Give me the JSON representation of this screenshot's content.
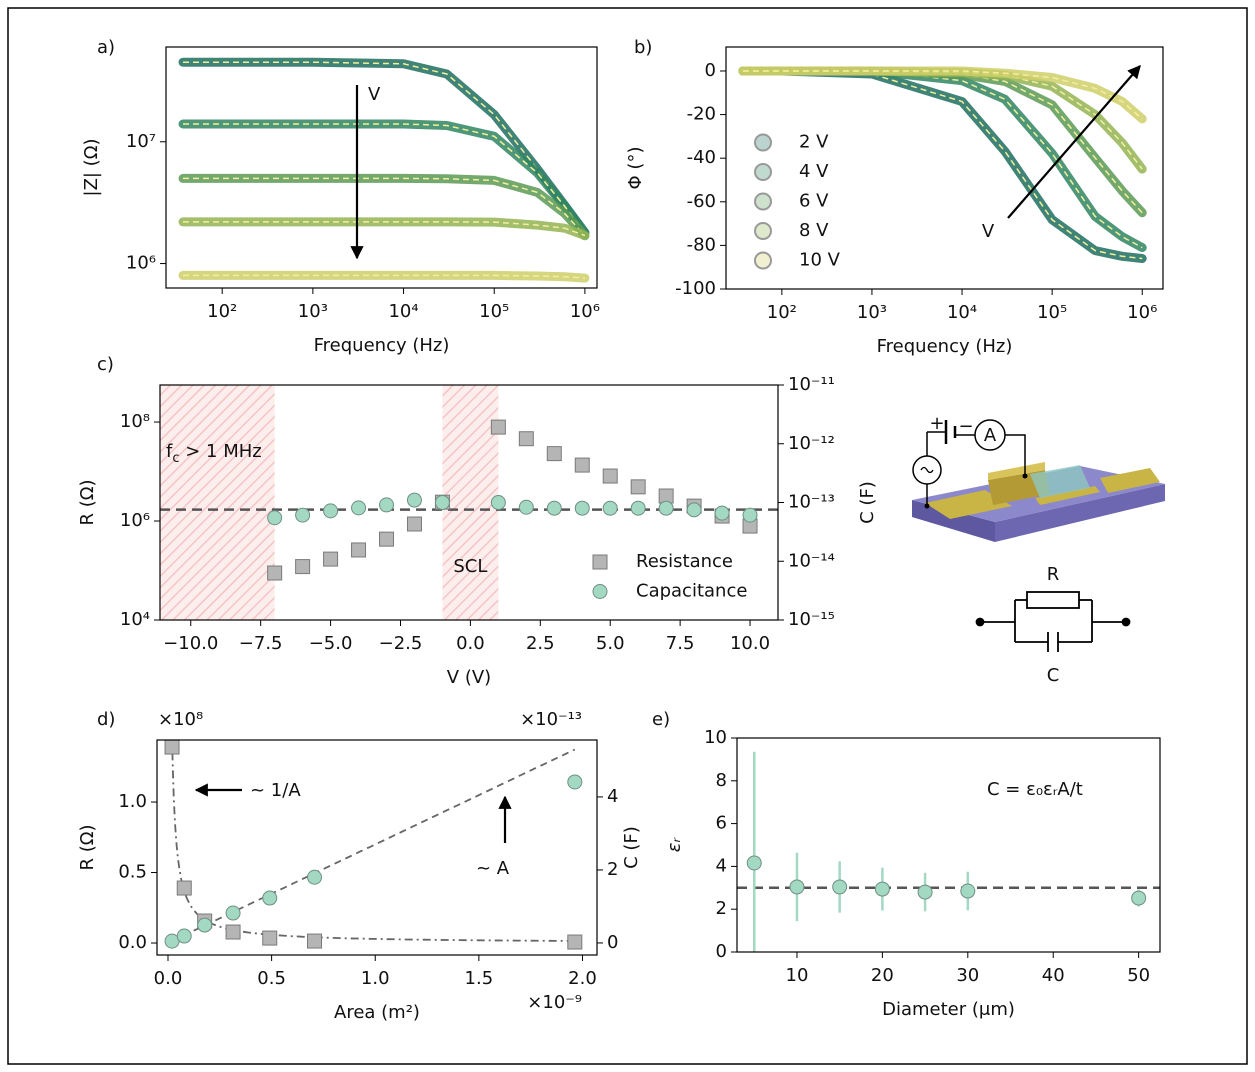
{
  "chart_data": [
    {
      "type": "line",
      "panel_label": "a)",
      "xlabel": "Frequency (Hz)",
      "ylabel": "|Z| (Ω)",
      "xscale": "log",
      "yscale": "log",
      "xlim": [
        24,
        1360000
      ],
      "ylim": [
        630000,
        60000000
      ],
      "xticks": [
        {
          "value": 100,
          "label": "10²"
        },
        {
          "value": 1000,
          "label": "10³"
        },
        {
          "value": 10000,
          "label": "10⁴"
        },
        {
          "value": 100000,
          "label": "10⁵"
        },
        {
          "value": 1000000,
          "label": "10⁶"
        }
      ],
      "yticks": [
        {
          "value": 1000000,
          "label": "10⁶"
        },
        {
          "value": 10000000,
          "label": "10⁷"
        }
      ],
      "x": [
        37,
        100,
        1000,
        10000,
        30000,
        100000,
        300000,
        600000,
        1000000
      ],
      "series": [
        {
          "color": "#1f6f60",
          "values": [
            45000000,
            45000000,
            45000000,
            43700000,
            36000000,
            16700000,
            5950000,
            3000000,
            1800000
          ]
        },
        {
          "color": "#2f8560",
          "values": [
            14000000,
            14000000,
            14000000,
            14000000,
            13600000,
            11100000,
            5530000,
            2940000,
            1790000
          ]
        },
        {
          "color": "#5a9a55",
          "values": [
            5000000,
            5000000,
            5000000,
            5000000,
            4970000,
            4820000,
            3840000,
            2570000,
            1690000
          ]
        },
        {
          "color": "#93b453",
          "values": [
            2200000,
            2200000,
            2200000,
            2200000,
            2200000,
            2190000,
            2070000,
            1950000,
            1700000
          ]
        },
        {
          "color": "#cfcf6a",
          "values": [
            800000,
            800000,
            800000,
            800000,
            800000,
            800000,
            790000,
            780000,
            760000
          ]
        }
      ],
      "annotations": [
        {
          "text": "V"
        }
      ]
    },
    {
      "type": "line",
      "panel_label": "b)",
      "xlabel": "Frequency (Hz)",
      "ylabel": "Φ (°)",
      "xscale": "log",
      "xlim": [
        24,
        1700000
      ],
      "ylim": [
        -100,
        11
      ],
      "xticks": [
        {
          "value": 100,
          "label": "10²"
        },
        {
          "value": 1000,
          "label": "10³"
        },
        {
          "value": 10000,
          "label": "10⁴"
        },
        {
          "value": 100000,
          "label": "10⁵"
        },
        {
          "value": 1000000,
          "label": "10⁶"
        }
      ],
      "yticks": [
        0,
        -20,
        -40,
        -60,
        -80,
        -100
      ],
      "x": [
        37,
        100,
        1000,
        10000,
        30000,
        100000,
        300000,
        600000,
        1000000
      ],
      "legend": "lower left",
      "series": [
        {
          "name": "2 V",
          "color": "#1f6f60",
          "values": [
            0,
            0,
            -1.4,
            -14,
            -36.9,
            -68.2,
            -82.4,
            -85,
            -86
          ]
        },
        {
          "name": "4 V",
          "color": "#2f8560",
          "values": [
            0,
            0,
            0,
            -4.4,
            -13,
            -37.8,
            -66.7,
            -76,
            -81
          ]
        },
        {
          "name": "6 V",
          "color": "#5a9a55",
          "values": [
            0,
            0,
            0,
            -1.6,
            -4.8,
            -15.5,
            -39.8,
            -55,
            -65
          ]
        },
        {
          "name": "8 V",
          "color": "#93b453",
          "values": [
            0,
            0,
            0,
            -0.7,
            -2,
            -7,
            -20,
            -33,
            -45
          ]
        },
        {
          "name": "10 V",
          "color": "#cfcf6a",
          "values": [
            0,
            0,
            0,
            0,
            -1,
            -3,
            -8,
            -14,
            -22
          ]
        }
      ],
      "annotations": [
        {
          "text": "V"
        }
      ]
    },
    {
      "type": "scatter",
      "panel_label": "c)",
      "xlabel": "V (V)",
      "ylabel": "R (Ω)",
      "y2label": "C (F)",
      "yscale": "log",
      "y2scale": "log",
      "xlim": [
        -11.1,
        11
      ],
      "ylim": [
        10000,
        560000000
      ],
      "y2lim": [
        1e-15,
        1e-11
      ],
      "xticks": [
        {
          "value": -10,
          "label": "−10.0"
        },
        {
          "value": -7.5,
          "label": "−7.5"
        },
        {
          "value": -5,
          "label": "−5.0"
        },
        {
          "value": -2.5,
          "label": "−2.5"
        },
        {
          "value": 0,
          "label": "0.0"
        },
        2.5,
        {
          "value": 5,
          "label": "5.0"
        },
        7.5,
        {
          "value": 10,
          "label": "10.0"
        }
      ],
      "yticks": [
        {
          "value": 10000,
          "label": "10⁴"
        },
        {
          "value": 1000000,
          "label": "10⁶"
        },
        {
          "value": 100000000,
          "label": "10⁸"
        }
      ],
      "y2ticks": [
        {
          "value": 1e-15,
          "label": "10⁻¹⁵"
        },
        {
          "value": 1e-14,
          "label": "10⁻¹⁴"
        },
        {
          "value": 1e-13,
          "label": "10⁻¹³"
        },
        {
          "value": 1e-12,
          "label": "10⁻¹²"
        },
        {
          "value": 1e-11,
          "label": "10⁻¹¹"
        }
      ],
      "x": [
        -7,
        -6,
        -5,
        -4,
        -3,
        -2,
        -1,
        1,
        2,
        3,
        4,
        5,
        6,
        7,
        8,
        9,
        10
      ],
      "legend": "lower right",
      "hline": 1700000,
      "shaded": [
        {
          "x": [
            -11.1,
            -7
          ],
          "label_parts": [
            "f",
            "c",
            " > 1 MHz"
          ]
        },
        {
          "x": [
            -1,
            1
          ],
          "label": "SCL"
        }
      ],
      "series": [
        {
          "name": "Resistance",
          "marker": "square",
          "color": "#b5b5b5",
          "values": [
            89000,
            120000,
            170000,
            260000,
            430000,
            870000,
            2400000,
            79000000,
            46000000,
            23000000,
            13500000,
            8100000,
            4900000,
            3200000,
            2000000,
            1260000,
            790000
          ]
        },
        {
          "name": "Capacitance",
          "marker": "circle",
          "color": "#a3d8c3",
          "axis": "y2",
          "values": [
            5.5e-14,
            6.1e-14,
            7.2e-14,
            8.1e-14,
            9.1e-14,
            1.1e-13,
            1e-13,
            1e-13,
            8.3e-14,
            8e-14,
            8e-14,
            8e-14,
            8e-14,
            8e-14,
            7.5e-14,
            6.6e-14,
            6.1e-14
          ]
        }
      ]
    },
    {
      "type": "scatter",
      "panel_label": "d)",
      "xlabel": "Area (m²)",
      "ylabel": "R (Ω)",
      "y2label": "C (F)",
      "x_offset": "×10⁻⁹",
      "y_offset": "×10⁸",
      "y2_offset": "×10⁻¹³",
      "xlim": [
        -0.053,
        2.07
      ],
      "ylim": [
        -0.085,
        1.44
      ],
      "y2lim": [
        -0.33,
        5.56
      ],
      "xticks": [
        {
          "value": 0,
          "label": "0.0"
        },
        0.5,
        {
          "value": 1,
          "label": "1.0"
        },
        1.5,
        {
          "value": 2,
          "label": "2.0"
        }
      ],
      "yticks": [
        {
          "value": 0,
          "label": "0.0"
        },
        0.5,
        {
          "value": 1,
          "label": "1.0"
        }
      ],
      "y2ticks": [
        0,
        2,
        4
      ],
      "x": [
        0.0196,
        0.0785,
        0.177,
        0.314,
        0.491,
        0.707,
        1.963
      ],
      "fits": [
        {
          "kind": "inverse",
          "coef": 0.029,
          "style": "dashdot"
        },
        {
          "kind": "linear",
          "coef": 2.7,
          "axis": "y2",
          "style": "dashed"
        }
      ],
      "series": [
        {
          "marker": "square",
          "color": "#b5b5b5",
          "values": [
            1.39,
            0.39,
            0.156,
            0.078,
            0.035,
            0.014,
            0.007
          ]
        },
        {
          "marker": "circle",
          "color": "#a3d8c3",
          "axis": "y2",
          "values": [
            0.05,
            0.19,
            0.49,
            0.82,
            1.23,
            1.8,
            4.41
          ]
        }
      ],
      "annotations": [
        {
          "text": "~ 1/A"
        },
        {
          "text": "~ A"
        }
      ]
    },
    {
      "type": "scatter",
      "panel_label": "e)",
      "xlabel": "Diameter (μm)",
      "ylabel": "εᵣ",
      "xlim": [
        2.98,
        52.5
      ],
      "ylim": [
        0,
        10
      ],
      "xticks": [
        10,
        20,
        30,
        40,
        50
      ],
      "yticks": [
        0,
        2,
        4,
        6,
        8,
        10
      ],
      "x": [
        5,
        10,
        15,
        20,
        25,
        30,
        50
      ],
      "hline": 3,
      "series": [
        {
          "marker": "circle",
          "color": "#a3d8c3",
          "values": [
            4.16,
            3.04,
            3.04,
            2.94,
            2.8,
            2.85,
            2.52
          ],
          "errors": [
            5.2,
            1.6,
            1.2,
            1.0,
            0.9,
            0.9,
            0.4
          ]
        }
      ],
      "annotations": [
        {
          "text": "C = ε₀εᵣA/t"
        }
      ]
    }
  ],
  "diagram": {
    "plus": "+",
    "minus": "−",
    "meter": "A",
    "resistor": "R",
    "capacitor": "C"
  }
}
